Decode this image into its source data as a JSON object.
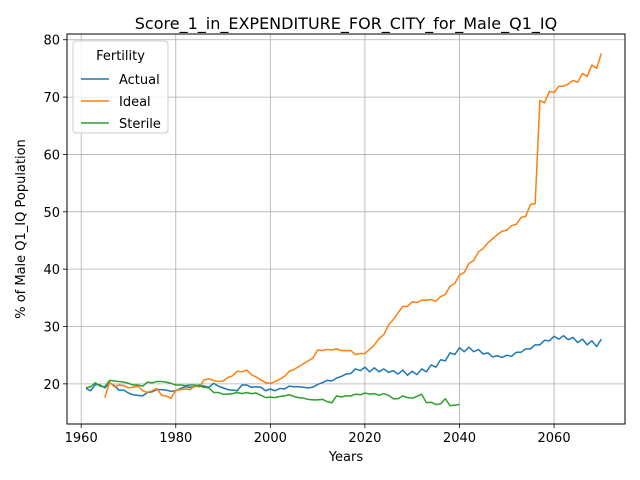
{
  "chart_data": {
    "type": "line",
    "title": "Score_1_in_EXPENDITURE_FOR_CITY_for_Male_Q1_IQ",
    "xlabel": "Years",
    "ylabel": "% of Male Q1_IQ Population",
    "xlim": [
      1957,
      2075
    ],
    "ylim": [
      13,
      81
    ],
    "xticks": [
      1960,
      1980,
      2000,
      2020,
      2040,
      2060
    ],
    "yticks": [
      20,
      30,
      40,
      50,
      60,
      70,
      80
    ],
    "grid": true,
    "legend": {
      "title": "Fertility",
      "position": "top-left"
    },
    "series": [
      {
        "name": "Actual",
        "color": "#1f77b4",
        "points": [
          [
            1961,
            19.2
          ],
          [
            1962,
            18.8
          ],
          [
            1963,
            19.9
          ],
          [
            1964,
            19.8
          ],
          [
            1965,
            19.3
          ],
          [
            1966,
            20.2
          ],
          [
            1967,
            19.7
          ],
          [
            1968,
            18.9
          ],
          [
            1969,
            18.9
          ],
          [
            1970,
            18.4
          ],
          [
            1971,
            18.1
          ],
          [
            1972,
            18.0
          ],
          [
            1973,
            17.9
          ],
          [
            1974,
            18.5
          ],
          [
            1975,
            18.6
          ],
          [
            1976,
            19.0
          ],
          [
            1977,
            19.0
          ],
          [
            1978,
            18.9
          ],
          [
            1979,
            18.7
          ],
          [
            1980,
            18.8
          ],
          [
            1981,
            19.2
          ],
          [
            1982,
            19.5
          ],
          [
            1983,
            19.4
          ],
          [
            1984,
            19.5
          ],
          [
            1985,
            19.8
          ],
          [
            1986,
            19.6
          ],
          [
            1987,
            19.4
          ],
          [
            1988,
            20.1
          ],
          [
            1989,
            19.6
          ],
          [
            1990,
            19.3
          ],
          [
            1991,
            19.0
          ],
          [
            1992,
            18.9
          ],
          [
            1993,
            18.8
          ],
          [
            1994,
            19.8
          ],
          [
            1995,
            19.8
          ],
          [
            1996,
            19.4
          ],
          [
            1997,
            19.5
          ],
          [
            1998,
            19.4
          ],
          [
            1999,
            18.8
          ],
          [
            2000,
            19.1
          ],
          [
            2001,
            18.8
          ],
          [
            2002,
            19.2
          ],
          [
            2003,
            19.1
          ],
          [
            2004,
            19.6
          ],
          [
            2005,
            19.5
          ],
          [
            2006,
            19.5
          ],
          [
            2007,
            19.4
          ],
          [
            2008,
            19.3
          ],
          [
            2009,
            19.4
          ],
          [
            2010,
            19.9
          ],
          [
            2011,
            20.2
          ],
          [
            2012,
            20.6
          ],
          [
            2013,
            20.5
          ],
          [
            2014,
            21.0
          ],
          [
            2015,
            21.3
          ],
          [
            2016,
            21.7
          ],
          [
            2017,
            21.8
          ],
          [
            2018,
            22.6
          ],
          [
            2019,
            22.3
          ],
          [
            2020,
            22.9
          ],
          [
            2021,
            22.1
          ],
          [
            2022,
            22.8
          ],
          [
            2023,
            22.1
          ],
          [
            2024,
            22.6
          ],
          [
            2025,
            22.0
          ],
          [
            2026,
            22.3
          ],
          [
            2027,
            21.7
          ],
          [
            2028,
            22.4
          ],
          [
            2029,
            21.5
          ],
          [
            2030,
            22.2
          ],
          [
            2031,
            21.6
          ],
          [
            2032,
            22.6
          ],
          [
            2033,
            22.1
          ],
          [
            2034,
            23.3
          ],
          [
            2035,
            22.9
          ],
          [
            2036,
            24.2
          ],
          [
            2037,
            24.0
          ],
          [
            2038,
            25.4
          ],
          [
            2039,
            25.1
          ],
          [
            2040,
            26.3
          ],
          [
            2041,
            25.6
          ],
          [
            2042,
            26.4
          ],
          [
            2043,
            25.6
          ],
          [
            2044,
            26.0
          ],
          [
            2045,
            25.2
          ],
          [
            2046,
            25.4
          ],
          [
            2047,
            24.7
          ],
          [
            2048,
            24.9
          ],
          [
            2049,
            24.6
          ],
          [
            2050,
            25.0
          ],
          [
            2051,
            24.8
          ],
          [
            2052,
            25.5
          ],
          [
            2053,
            25.5
          ],
          [
            2054,
            26.1
          ],
          [
            2055,
            26.1
          ],
          [
            2056,
            26.8
          ],
          [
            2057,
            26.8
          ],
          [
            2058,
            27.6
          ],
          [
            2059,
            27.5
          ],
          [
            2060,
            28.3
          ],
          [
            2061,
            27.8
          ],
          [
            2062,
            28.4
          ],
          [
            2063,
            27.7
          ],
          [
            2064,
            28.1
          ],
          [
            2065,
            27.2
          ],
          [
            2066,
            27.8
          ],
          [
            2067,
            26.8
          ],
          [
            2068,
            27.5
          ],
          [
            2069,
            26.5
          ],
          [
            2070,
            27.8
          ]
        ]
      },
      {
        "name": "Ideal",
        "color": "#ff7f0e",
        "points": [
          [
            1965,
            17.6
          ],
          [
            1966,
            20.3
          ],
          [
            1967,
            19.5
          ],
          [
            1968,
            19.8
          ],
          [
            1969,
            19.7
          ],
          [
            1970,
            19.3
          ],
          [
            1971,
            19.4
          ],
          [
            1972,
            19.6
          ],
          [
            1973,
            18.8
          ],
          [
            1974,
            18.5
          ],
          [
            1975,
            18.8
          ],
          [
            1976,
            19.2
          ],
          [
            1977,
            18.0
          ],
          [
            1978,
            17.9
          ],
          [
            1979,
            17.5
          ],
          [
            1980,
            18.9
          ],
          [
            1981,
            19.0
          ],
          [
            1982,
            19.1
          ],
          [
            1983,
            19.0
          ],
          [
            1984,
            19.6
          ],
          [
            1985,
            19.5
          ],
          [
            1986,
            20.7
          ],
          [
            1987,
            20.9
          ],
          [
            1988,
            20.6
          ],
          [
            1989,
            20.4
          ],
          [
            1990,
            20.5
          ],
          [
            1991,
            21.1
          ],
          [
            1992,
            21.4
          ],
          [
            1993,
            22.2
          ],
          [
            1994,
            22.1
          ],
          [
            1995,
            22.4
          ],
          [
            1996,
            21.6
          ],
          [
            1997,
            21.2
          ],
          [
            1998,
            20.7
          ],
          [
            1999,
            20.2
          ],
          [
            2000,
            20.1
          ],
          [
            2001,
            20.4
          ],
          [
            2002,
            20.8
          ],
          [
            2003,
            21.3
          ],
          [
            2004,
            22.2
          ],
          [
            2005,
            22.5
          ],
          [
            2006,
            23.0
          ],
          [
            2007,
            23.5
          ],
          [
            2008,
            24.0
          ],
          [
            2009,
            24.5
          ],
          [
            2010,
            25.9
          ],
          [
            2011,
            25.8
          ],
          [
            2012,
            26.0
          ],
          [
            2013,
            25.9
          ],
          [
            2014,
            26.1
          ],
          [
            2015,
            25.8
          ],
          [
            2016,
            25.8
          ],
          [
            2017,
            25.8
          ],
          [
            2018,
            25.1
          ],
          [
            2019,
            25.3
          ],
          [
            2020,
            25.3
          ],
          [
            2021,
            26.0
          ],
          [
            2022,
            26.8
          ],
          [
            2023,
            27.9
          ],
          [
            2024,
            28.6
          ],
          [
            2025,
            30.3
          ],
          [
            2026,
            31.2
          ],
          [
            2027,
            32.4
          ],
          [
            2028,
            33.5
          ],
          [
            2029,
            33.5
          ],
          [
            2030,
            34.3
          ],
          [
            2031,
            34.2
          ],
          [
            2032,
            34.6
          ],
          [
            2033,
            34.6
          ],
          [
            2034,
            34.7
          ],
          [
            2035,
            34.4
          ],
          [
            2036,
            35.2
          ],
          [
            2037,
            35.6
          ],
          [
            2038,
            37.0
          ],
          [
            2039,
            37.5
          ],
          [
            2040,
            39.0
          ],
          [
            2041,
            39.4
          ],
          [
            2042,
            41.0
          ],
          [
            2043,
            41.5
          ],
          [
            2044,
            43.0
          ],
          [
            2045,
            43.6
          ],
          [
            2046,
            44.6
          ],
          [
            2047,
            45.3
          ],
          [
            2048,
            46.0
          ],
          [
            2049,
            46.6
          ],
          [
            2050,
            46.8
          ],
          [
            2051,
            47.6
          ],
          [
            2052,
            47.8
          ],
          [
            2053,
            49.0
          ],
          [
            2054,
            49.2
          ],
          [
            2055,
            51.3
          ],
          [
            2056,
            51.4
          ],
          [
            2057,
            69.4
          ],
          [
            2058,
            69.0
          ],
          [
            2059,
            71.0
          ],
          [
            2060,
            70.8
          ],
          [
            2061,
            71.9
          ],
          [
            2062,
            71.9
          ],
          [
            2063,
            72.3
          ],
          [
            2064,
            72.9
          ],
          [
            2065,
            72.6
          ],
          [
            2066,
            74.1
          ],
          [
            2067,
            73.6
          ],
          [
            2068,
            75.6
          ],
          [
            2069,
            75.0
          ],
          [
            2070,
            77.6
          ]
        ]
      },
      {
        "name": "Sterile",
        "color": "#2ca02c",
        "points": [
          [
            1961,
            19.3
          ],
          [
            1962,
            19.5
          ],
          [
            1963,
            20.2
          ],
          [
            1964,
            19.6
          ],
          [
            1965,
            19.5
          ],
          [
            1966,
            20.6
          ],
          [
            1967,
            20.5
          ],
          [
            1968,
            20.4
          ],
          [
            1969,
            20.3
          ],
          [
            1970,
            20.1
          ],
          [
            1971,
            19.8
          ],
          [
            1972,
            19.8
          ],
          [
            1973,
            19.6
          ],
          [
            1974,
            20.3
          ],
          [
            1975,
            20.2
          ],
          [
            1976,
            20.4
          ],
          [
            1977,
            20.4
          ],
          [
            1978,
            20.3
          ],
          [
            1979,
            20.1
          ],
          [
            1980,
            19.8
          ],
          [
            1981,
            19.8
          ],
          [
            1982,
            19.7
          ],
          [
            1983,
            19.8
          ],
          [
            1984,
            19.8
          ],
          [
            1985,
            19.6
          ],
          [
            1986,
            19.4
          ],
          [
            1987,
            19.3
          ],
          [
            1988,
            18.5
          ],
          [
            1989,
            18.5
          ],
          [
            1990,
            18.2
          ],
          [
            1991,
            18.2
          ],
          [
            1992,
            18.3
          ],
          [
            1993,
            18.5
          ],
          [
            1994,
            18.3
          ],
          [
            1995,
            18.5
          ],
          [
            1996,
            18.3
          ],
          [
            1997,
            18.4
          ],
          [
            1998,
            18.0
          ],
          [
            1999,
            17.6
          ],
          [
            2000,
            17.7
          ],
          [
            2001,
            17.6
          ],
          [
            2002,
            17.8
          ],
          [
            2003,
            17.9
          ],
          [
            2004,
            18.1
          ],
          [
            2005,
            17.8
          ],
          [
            2006,
            17.6
          ],
          [
            2007,
            17.5
          ],
          [
            2008,
            17.3
          ],
          [
            2009,
            17.2
          ],
          [
            2010,
            17.2
          ],
          [
            2011,
            17.3
          ],
          [
            2012,
            16.9
          ],
          [
            2013,
            16.7
          ],
          [
            2014,
            17.9
          ],
          [
            2015,
            17.7
          ],
          [
            2016,
            17.9
          ],
          [
            2017,
            17.9
          ],
          [
            2018,
            18.2
          ],
          [
            2019,
            18.1
          ],
          [
            2020,
            18.4
          ],
          [
            2021,
            18.2
          ],
          [
            2022,
            18.3
          ],
          [
            2023,
            18.0
          ],
          [
            2024,
            18.3
          ],
          [
            2025,
            18.0
          ],
          [
            2026,
            17.4
          ],
          [
            2027,
            17.4
          ],
          [
            2028,
            17.9
          ],
          [
            2029,
            17.6
          ],
          [
            2030,
            17.5
          ],
          [
            2031,
            17.8
          ],
          [
            2032,
            18.2
          ],
          [
            2033,
            16.7
          ],
          [
            2034,
            16.8
          ],
          [
            2035,
            16.4
          ],
          [
            2036,
            16.5
          ],
          [
            2037,
            17.4
          ],
          [
            2038,
            16.2
          ],
          [
            2039,
            16.3
          ],
          [
            2040,
            16.4
          ]
        ]
      }
    ]
  }
}
